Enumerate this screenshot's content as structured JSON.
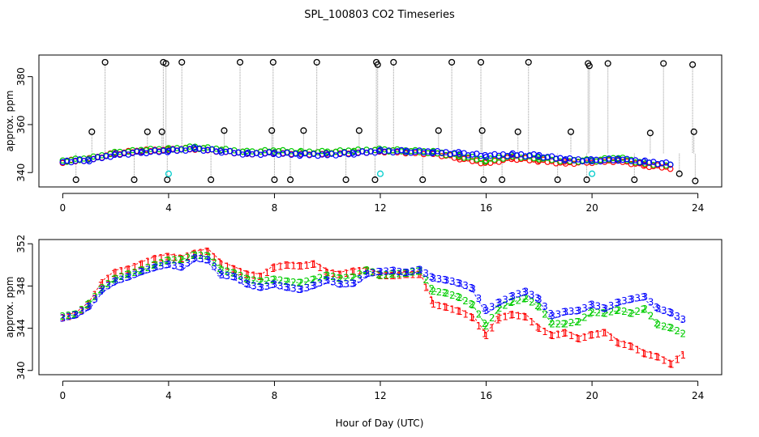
{
  "figure": {
    "title": "SPL_100803  CO2 Timeseries",
    "xlabel": "Hour of Day (UTC)"
  },
  "colors": {
    "series1": "#ff0000",
    "series2": "#00cc00",
    "series3": "#0000ff",
    "reference": "#000000",
    "calibration": "#00cccc",
    "connector": "#999999"
  },
  "chart_data": [
    {
      "type": "scatter",
      "panel": "top",
      "ylabel": "approx. ppm",
      "xlim": [
        -0.9,
        24.9
      ],
      "ylim": [
        334,
        389
      ],
      "xticks": [
        0,
        4,
        8,
        12,
        16,
        20,
        24
      ],
      "yticks": [
        340,
        360,
        380
      ],
      "markers": "open circles",
      "series": [
        {
          "values_x": [
            0,
            1,
            2,
            3,
            4,
            5,
            6,
            7,
            8,
            9,
            10,
            11,
            12,
            13,
            14,
            15,
            16,
            17,
            18,
            19,
            20,
            21,
            22,
            23,
            24
          ],
          "values_y": [
            344.5,
            345.5,
            348,
            349,
            349.5,
            350,
            349,
            348,
            348.5,
            348,
            348,
            348.5,
            349,
            348.5,
            348,
            346,
            344,
            346,
            345,
            344,
            344.5,
            345,
            343,
            342,
            null
          ]
        },
        {
          "values_x": [
            0,
            1,
            2,
            3,
            4,
            5,
            6,
            7,
            8,
            9,
            10,
            11,
            12,
            13,
            14,
            15,
            16,
            17,
            18,
            19,
            20,
            21,
            22,
            23,
            24
          ],
          "values_y": [
            344.8,
            345.8,
            348.2,
            349.2,
            349.7,
            350.5,
            349.5,
            348.5,
            349,
            348.5,
            348.5,
            349,
            349.5,
            349,
            348.5,
            347,
            345,
            347,
            346,
            345,
            345,
            346,
            344,
            343,
            null
          ]
        },
        {
          "values_x": [
            0,
            1,
            2,
            3,
            4,
            5,
            6,
            7,
            8,
            9,
            10,
            11,
            12,
            13,
            14,
            15,
            16,
            17,
            18,
            19,
            20,
            21,
            22,
            23,
            24
          ],
          "values_y": [
            344.6,
            345.2,
            347.5,
            348.5,
            349,
            350,
            348.8,
            347.8,
            348,
            347.5,
            347.5,
            348,
            349,
            348.8,
            348.5,
            348,
            347,
            347.5,
            347,
            345.5,
            345,
            345.5,
            344.5,
            343.5,
            null
          ]
        }
      ],
      "reference_points": {
        "x": [
          0.5,
          1.1,
          1.6,
          2.7,
          3.2,
          3.75,
          3.8,
          3.9,
          3.95,
          4.5,
          5.6,
          6.1,
          6.7,
          7.9,
          7.95,
          8,
          8.6,
          9.1,
          9.6,
          10.7,
          11.2,
          11.8,
          11.85,
          11.9,
          12.5,
          13.6,
          14.2,
          14.7,
          15.8,
          15.85,
          15.9,
          16.6,
          17.2,
          17.6,
          18.7,
          19.2,
          19.8,
          19.85,
          19.9,
          20.6,
          21.6,
          22.2,
          22.7,
          23.3,
          23.8,
          23.85,
          23.9
        ],
        "y": [
          337,
          357,
          386,
          337,
          357,
          357,
          386,
          385.5,
          337,
          386,
          337,
          357.5,
          386,
          357.5,
          386,
          337,
          337,
          357.5,
          386,
          337,
          357.5,
          337,
          386,
          385,
          386,
          337,
          357.5,
          386,
          386,
          357.5,
          337,
          337,
          357,
          386,
          337,
          357,
          337,
          385.5,
          384.5,
          385.5,
          337,
          356.5,
          385.5,
          339.5,
          385,
          357,
          336.5
        ]
      },
      "calibration_points": {
        "x": [
          4.0,
          12.0,
          20.0
        ],
        "y": [
          339.5,
          339.5,
          339.5
        ]
      }
    },
    {
      "type": "scatter",
      "panel": "bottom",
      "ylabel": "approx. ppm",
      "xlim": [
        -0.9,
        24.9
      ],
      "ylim": [
        339.6,
        352.4
      ],
      "xticks": [
        0,
        4,
        8,
        12,
        16,
        20,
        24
      ],
      "yticks": [
        340,
        344,
        348,
        352
      ],
      "markers": "digits 1 2 3",
      "series": [
        {
          "name": "1",
          "marker": "1",
          "x": [
            0,
            0.5,
            1,
            1.5,
            2,
            2.5,
            3,
            3.5,
            4,
            4.5,
            5,
            5.5,
            6,
            6.5,
            7,
            7.5,
            8,
            8.5,
            9,
            9.5,
            10,
            10.5,
            11,
            11.5,
            12,
            12.5,
            13,
            13.5,
            14,
            14.5,
            15,
            15.5,
            16,
            16.5,
            17,
            17.5,
            18,
            18.5,
            19,
            19.5,
            20,
            20.5,
            21,
            21.5,
            22,
            22.5,
            23,
            23.5
          ],
          "y": [
            345.2,
            345.5,
            346.5,
            348.5,
            349.5,
            349.8,
            350.3,
            350.8,
            351,
            350.8,
            351.3,
            351.5,
            350.3,
            349.8,
            349.3,
            349.1,
            350,
            350.2,
            350.1,
            350.3,
            349.5,
            349.3,
            349.6,
            349.7,
            349.2,
            349.2,
            349.3,
            349.3,
            346.5,
            346.2,
            345.8,
            345.2,
            343.5,
            345.2,
            345.5,
            345.3,
            344.2,
            343.5,
            343.8,
            343.2,
            343.6,
            343.8,
            342.8,
            342.5,
            341.8,
            341.5,
            340.8,
            341.8
          ]
        },
        {
          "name": "2",
          "marker": "2",
          "x": [
            0,
            0.5,
            1,
            1.5,
            2,
            2.5,
            3,
            3.5,
            4,
            4.5,
            5,
            5.5,
            6,
            6.5,
            7,
            7.5,
            8,
            8.5,
            9,
            9.5,
            10,
            10.5,
            11,
            11.5,
            12,
            12.5,
            13,
            13.5,
            14,
            14.5,
            15,
            15.5,
            16,
            16.5,
            17,
            17.5,
            18,
            18.5,
            19,
            19.5,
            20,
            20.5,
            21,
            21.5,
            22,
            22.5,
            23,
            23.5
          ],
          "y": [
            345.1,
            345.3,
            346.3,
            347.8,
            348.7,
            349.1,
            349.5,
            350,
            350.4,
            350.5,
            350.9,
            350.8,
            349.5,
            349.2,
            348.6,
            348.4,
            348.6,
            348.4,
            348.3,
            348.6,
            349,
            348.7,
            348.8,
            349.5,
            349,
            349.1,
            349.2,
            349.4,
            347.5,
            347.3,
            346.9,
            346.2,
            344.2,
            345.9,
            346.5,
            346.8,
            346,
            344.4,
            344.4,
            344.6,
            345.5,
            345.4,
            345.7,
            345.4,
            345.8,
            344.3,
            344,
            343.4
          ]
        },
        {
          "name": "3",
          "marker": "3",
          "x": [
            0,
            0.5,
            1,
            1.5,
            2,
            2.5,
            3,
            3.5,
            4,
            4.5,
            5,
            5.5,
            6,
            6.5,
            7,
            7.5,
            8,
            8.5,
            9,
            9.5,
            10,
            10.5,
            11,
            11.5,
            12,
            12.5,
            13,
            13.5,
            14,
            14.5,
            15,
            15.5,
            16,
            16.5,
            17,
            17.5,
            18,
            18.5,
            19,
            19.5,
            20,
            20.5,
            21,
            21.5,
            22,
            22.5,
            23,
            23.5
          ],
          "y": [
            344.7,
            345,
            345.8,
            347.4,
            348.2,
            348.6,
            349.1,
            349.5,
            349.8,
            349.5,
            350.4,
            350.2,
            348.8,
            348.6,
            347.9,
            347.6,
            347.9,
            347.6,
            347.4,
            347.8,
            348.3,
            347.9,
            348,
            348.9,
            349.1,
            349.2,
            349,
            349.3,
            348.5,
            348.3,
            348,
            347.5,
            345.4,
            346.2,
            346.8,
            347.2,
            346.5,
            344.9,
            345.3,
            345.4,
            346,
            345.6,
            346.2,
            346.5,
            346.7,
            345.6,
            345.2,
            344.5
          ]
        }
      ]
    }
  ]
}
